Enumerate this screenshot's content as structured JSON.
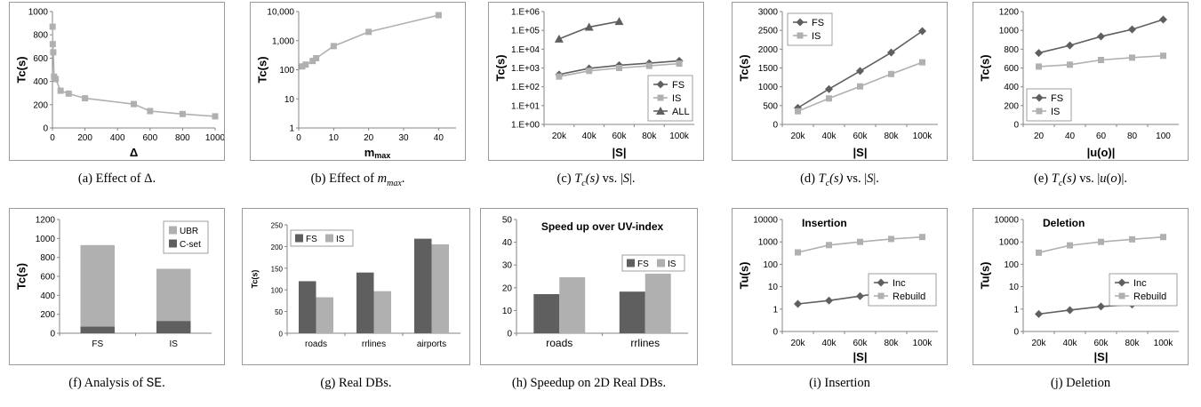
{
  "colors": {
    "dark": "#5f5f5f",
    "light": "#b0b0b0",
    "axis": "#868686"
  },
  "charts": [
    {
      "id": "a",
      "type": "line",
      "scale": "linear",
      "ylabel": "Tc(s)",
      "xlabel": "Δ",
      "xlim": [
        0,
        1000
      ],
      "ylim": [
        0,
        1000
      ],
      "xticks": [
        0,
        200,
        400,
        600,
        800,
        1000
      ],
      "xticklabels": [
        "0",
        "200",
        "400",
        "600",
        "800",
        "1000"
      ],
      "yticks": [
        0,
        200,
        400,
        600,
        800,
        1000
      ],
      "yticklabels": [
        "0",
        "200",
        "400",
        "600",
        "800",
        "1000"
      ],
      "series": [
        {
          "color": "light",
          "marker": "square",
          "x": [
            1,
            2,
            5,
            10,
            20,
            50,
            100,
            200,
            500,
            600,
            800,
            1000
          ],
          "y": [
            870,
            720,
            650,
            440,
            420,
            320,
            295,
            255,
            205,
            145,
            120,
            100
          ]
        }
      ],
      "caption": "(a) Effect of Δ."
    },
    {
      "id": "b",
      "type": "line",
      "scale": "log",
      "ylabel": "Tc(s)",
      "xlabel": "m",
      "xlabel_sub": "max",
      "xlim": [
        0,
        45
      ],
      "ylim": [
        1,
        10000
      ],
      "xticks": [
        0,
        10,
        20,
        30,
        40
      ],
      "xticklabels": [
        "0",
        "10",
        "20",
        "30",
        "40"
      ],
      "yticks": [
        1,
        10,
        100,
        1000,
        10000
      ],
      "yticklabels": [
        "1",
        "10",
        "100",
        "1,000",
        "10,000"
      ],
      "series": [
        {
          "color": "light",
          "marker": "square",
          "x": [
            1,
            2,
            4,
            5,
            10,
            20,
            40
          ],
          "y": [
            130,
            150,
            200,
            250,
            650,
            2000,
            7500
          ]
        }
      ],
      "caption": "(b) Effect of m_max."
    },
    {
      "id": "c",
      "type": "line",
      "scale": "log",
      "ylabel": "Tc(s)",
      "xlabel": "|S|",
      "categories": [
        "20k",
        "40k",
        "60k",
        "80k",
        "100k"
      ],
      "ylim": [
        1,
        1000000
      ],
      "yticks": [
        1,
        10,
        100,
        1000,
        10000,
        100000,
        1000000
      ],
      "yticklabels": [
        "1.E+00",
        "1.E+01",
        "1.E+02",
        "1.E+03",
        "1.E+04",
        "1.E+05",
        "1.E+06"
      ],
      "series": [
        {
          "name": "FS",
          "color": "dark",
          "marker": "diamond",
          "values": [
            450,
            950,
            1400,
            1800,
            2400
          ]
        },
        {
          "name": "IS",
          "color": "light",
          "marker": "square",
          "values": [
            350,
            700,
            1000,
            1300,
            1700
          ]
        },
        {
          "name": "ALL",
          "color": "dark",
          "marker": "triangle",
          "values": [
            35000,
            150000,
            300000,
            null,
            null
          ]
        }
      ],
      "legend": "bottom-right",
      "caption": "(c) Tc(s) vs. |S|."
    },
    {
      "id": "d",
      "type": "line",
      "scale": "linear",
      "ylabel": "Tc(s)",
      "xlabel": "|S|",
      "categories": [
        "20k",
        "40k",
        "60k",
        "80k",
        "100k"
      ],
      "ylim": [
        0,
        3000
      ],
      "yticks": [
        0,
        500,
        1000,
        1500,
        2000,
        2500,
        3000
      ],
      "yticklabels": [
        "0",
        "500",
        "1000",
        "1500",
        "2000",
        "2500",
        "3000"
      ],
      "series": [
        {
          "name": "FS",
          "color": "dark",
          "marker": "diamond",
          "values": [
            440,
            940,
            1420,
            1910,
            2480
          ]
        },
        {
          "name": "IS",
          "color": "light",
          "marker": "square",
          "values": [
            350,
            690,
            1010,
            1340,
            1650
          ]
        }
      ],
      "legend": "top-left",
      "caption": "(d) Tc(s) vs. |S|."
    },
    {
      "id": "e",
      "type": "line",
      "scale": "linear",
      "ylabel": "Tc(s)",
      "xlabel": "|u(o)|",
      "categories": [
        "20",
        "40",
        "60",
        "80",
        "100"
      ],
      "ylim": [
        0,
        1200
      ],
      "yticks": [
        0,
        200,
        400,
        600,
        800,
        1000,
        1200
      ],
      "yticklabels": [
        "0",
        "200",
        "400",
        "600",
        "800",
        "1000",
        "1200"
      ],
      "series": [
        {
          "name": "FS",
          "color": "dark",
          "marker": "diamond",
          "values": [
            760,
            840,
            935,
            1010,
            1115
          ]
        },
        {
          "name": "IS",
          "color": "light",
          "marker": "square",
          "values": [
            615,
            635,
            685,
            710,
            730
          ]
        }
      ],
      "legend": "bottom-left",
      "caption": "(e) Tc(s) vs. |u(o)|."
    },
    {
      "id": "f",
      "type": "stacked-bar",
      "scale": "linear",
      "ylabel": "Tc(s)",
      "xlabel": "",
      "categories": [
        "FS",
        "IS"
      ],
      "ylim": [
        0,
        1200
      ],
      "yticks": [
        0,
        200,
        400,
        600,
        800,
        1000,
        1200
      ],
      "yticklabels": [
        "0",
        "200",
        "400",
        "600",
        "800",
        "1000",
        "1200"
      ],
      "series": [
        {
          "name": "C-set",
          "color": "dark",
          "values": [
            70,
            130
          ]
        },
        {
          "name": "UBR",
          "color": "light",
          "values": [
            860,
            550
          ]
        }
      ],
      "legend": "top-right",
      "caption": "(f) Analysis of SE."
    },
    {
      "id": "g",
      "type": "bar",
      "scale": "linear",
      "ylabel": "Tc(s)",
      "xlabel": "",
      "categories": [
        "roads",
        "rrlines",
        "airports"
      ],
      "ylim": [
        0,
        250
      ],
      "yticks": [
        0,
        50,
        100,
        150,
        200,
        250
      ],
      "yticklabels": [
        "0",
        "50",
        "100",
        "150",
        "200",
        "250"
      ],
      "series": [
        {
          "name": "FS",
          "color": "dark",
          "values": [
            120,
            140,
            218
          ]
        },
        {
          "name": "IS",
          "color": "light",
          "values": [
            83,
            97,
            205
          ]
        }
      ],
      "legend": "top-left",
      "caption": "(g) Real DBs."
    },
    {
      "id": "h",
      "type": "bar",
      "scale": "linear",
      "ylabel": "",
      "xlabel": "",
      "title": "Speed up over UV-index",
      "categories": [
        "roads",
        "rrlines"
      ],
      "ylim": [
        0,
        50
      ],
      "yticks": [
        0,
        10,
        20,
        30,
        40,
        50
      ],
      "yticklabels": [
        "0",
        "10",
        "20",
        "30",
        "40",
        "50"
      ],
      "series": [
        {
          "name": "FS",
          "color": "dark",
          "values": [
            17.2,
            18.3
          ]
        },
        {
          "name": "IS",
          "color": "light",
          "values": [
            24.6,
            26.2
          ]
        }
      ],
      "legend": "top-right",
      "caption": "(h) Speedup on 2D Real DBs."
    },
    {
      "id": "i",
      "type": "line",
      "scale": "log",
      "ylabel": "Tu(s)",
      "xlabel": "|S|",
      "title": "Insertion",
      "categories": [
        "20k",
        "40k",
        "60k",
        "80k",
        "100k"
      ],
      "ylim": [
        0.1,
        10000
      ],
      "yticks": [
        0.1,
        1,
        10,
        100,
        1000,
        10000
      ],
      "yticklabels": [
        "0",
        "1",
        "10",
        "100",
        "1000",
        "10000"
      ],
      "series": [
        {
          "name": "Inc",
          "color": "dark",
          "marker": "diamond",
          "values": [
            1.7,
            2.4,
            3.8,
            6,
            7.5
          ]
        },
        {
          "name": "Rebuild",
          "color": "light",
          "marker": "square",
          "values": [
            340,
            720,
            1000,
            1350,
            1650
          ]
        }
      ],
      "legend": "right",
      "caption": "(i) Insertion"
    },
    {
      "id": "j",
      "type": "line",
      "scale": "log",
      "ylabel": "Tu(s)",
      "xlabel": "|S|",
      "title": "Deletion",
      "categories": [
        "20k",
        "40k",
        "60k",
        "80k",
        "100k"
      ],
      "ylim": [
        0.1,
        10000
      ],
      "yticks": [
        0.1,
        1,
        10,
        100,
        1000,
        10000
      ],
      "yticklabels": [
        "0",
        "1",
        "10",
        "100",
        "1000",
        "10000"
      ],
      "series": [
        {
          "name": "Inc",
          "color": "dark",
          "marker": "diamond",
          "values": [
            0.6,
            0.9,
            1.3,
            1.6,
            2.1
          ]
        },
        {
          "name": "Rebuild",
          "color": "light",
          "marker": "square",
          "values": [
            330,
            700,
            1000,
            1300,
            1650
          ]
        }
      ],
      "legend": "right",
      "caption": "(j) Deletion"
    }
  ]
}
